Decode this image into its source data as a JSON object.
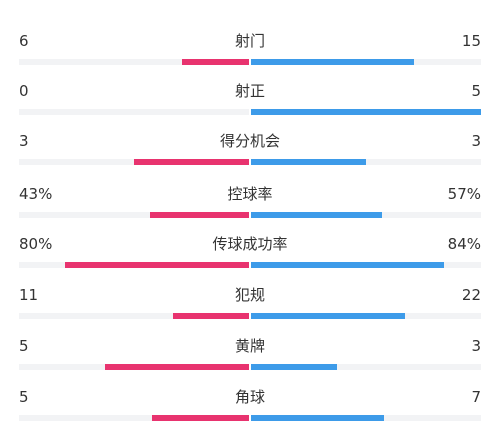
{
  "colors": {
    "left_bar": "#e8336f",
    "right_bar": "#3d9be9",
    "track": "#f2f3f5"
  },
  "stats": [
    {
      "label": "射门",
      "left": "6",
      "right": "15",
      "left_fraction": 0.29,
      "right_fraction": 0.71
    },
    {
      "label": "射正",
      "left": "0",
      "right": "5",
      "left_fraction": 0.0,
      "right_fraction": 1.0
    },
    {
      "label": "得分机会",
      "left": "3",
      "right": "3",
      "left_fraction": 0.5,
      "right_fraction": 0.5
    },
    {
      "label": "控球率",
      "left": "43%",
      "right": "57%",
      "left_fraction": 0.43,
      "right_fraction": 0.57
    },
    {
      "label": "传球成功率",
      "left": "80%",
      "right": "84%",
      "left_fraction": 0.8,
      "right_fraction": 0.84
    },
    {
      "label": "犯规",
      "left": "11",
      "right": "22",
      "left_fraction": 0.33,
      "right_fraction": 0.67
    },
    {
      "label": "黄牌",
      "left": "5",
      "right": "3",
      "left_fraction": 0.625,
      "right_fraction": 0.375
    },
    {
      "label": "角球",
      "left": "5",
      "right": "7",
      "left_fraction": 0.42,
      "right_fraction": 0.58
    }
  ]
}
